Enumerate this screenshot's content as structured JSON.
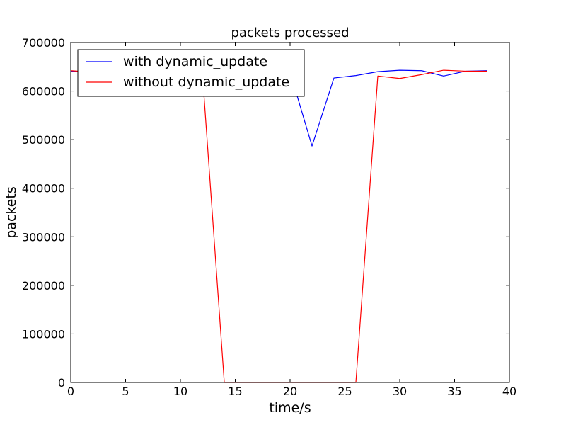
{
  "chart_data": {
    "type": "line",
    "title": "packets processed",
    "xlabel": "time/s",
    "ylabel": "packets",
    "xlim": [
      0,
      40
    ],
    "ylim": [
      0,
      700000
    ],
    "xticks": [
      0,
      5,
      10,
      15,
      20,
      25,
      30,
      35,
      40
    ],
    "yticks": [
      0,
      100000,
      200000,
      300000,
      400000,
      500000,
      600000,
      700000
    ],
    "grid": false,
    "legend_position": "top-left",
    "series": [
      {
        "name": "with dynamic_update",
        "color": "#0000ff",
        "x": [
          0,
          2,
          4,
          6,
          8,
          10,
          12,
          14,
          16,
          18,
          20,
          22,
          24,
          26,
          28,
          30,
          32,
          34,
          36,
          38
        ],
        "y": [
          641000,
          638000,
          640000,
          639000,
          641000,
          640000,
          639000,
          640000,
          641000,
          640000,
          639000,
          487000,
          627000,
          632000,
          640000,
          643000,
          642000,
          631000,
          641000,
          642000
        ]
      },
      {
        "name": "without dynamic_update",
        "color": "#ff0000",
        "x": [
          0,
          2,
          4,
          6,
          8,
          10,
          12,
          14,
          16,
          18,
          20,
          22,
          24,
          26,
          28,
          30,
          32,
          34,
          36,
          38
        ],
        "y": [
          642000,
          639000,
          641000,
          640000,
          639000,
          640000,
          638000,
          0,
          0,
          0,
          0,
          0,
          0,
          0,
          631000,
          626000,
          634000,
          643000,
          641000,
          641000
        ]
      }
    ]
  }
}
